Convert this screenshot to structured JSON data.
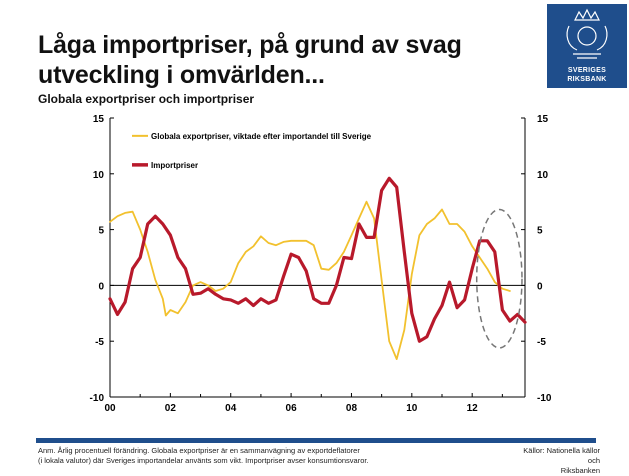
{
  "header": {
    "title_line1": "Låga importpriser, på grund av svag",
    "title_line2": "utveckling i omvärlden...",
    "subtitle": "Globala exportpriser och importpriser"
  },
  "logo": {
    "text1": "SVERIGES",
    "text2": "RIKSBANK",
    "color": "#1f4e8c"
  },
  "footer": {
    "note_line1": "Anm. Årlig procentuell förändring. Globala exportpriser är en sammanvägning av exportdeflatorer",
    "note_line2": "(i lokala valutor) där Sveriges importandelar använts som vikt. Importpriser avser konsumtionsvaror.",
    "source_line1": "Källor: Nationella källor och",
    "source_line2": "Riksbanken"
  },
  "chart_data": {
    "type": "line",
    "ylim": [
      -10,
      15
    ],
    "xlim": [
      2000,
      2013.75
    ],
    "yticks": [
      15,
      10,
      5,
      0,
      -5,
      -10
    ],
    "xticks": [
      {
        "value": 2000,
        "label": "00"
      },
      {
        "value": 2002,
        "label": "02"
      },
      {
        "value": 2004,
        "label": "04"
      },
      {
        "value": 2006,
        "label": "06"
      },
      {
        "value": 2008,
        "label": "08"
      },
      {
        "value": 2010,
        "label": "10"
      },
      {
        "value": 2012,
        "label": "12"
      }
    ],
    "series": [
      {
        "name": "Globala exportpriser, viktade efter importandel till Sverige",
        "color": "#f2c12e",
        "points": [
          [
            2000.0,
            5.7
          ],
          [
            2000.25,
            6.2
          ],
          [
            2000.5,
            6.5
          ],
          [
            2000.75,
            6.6
          ],
          [
            2001.0,
            5.0
          ],
          [
            2001.25,
            3.0
          ],
          [
            2001.5,
            0.5
          ],
          [
            2001.75,
            -1.2
          ],
          [
            2001.85,
            -2.7
          ],
          [
            2002.0,
            -2.2
          ],
          [
            2002.25,
            -2.5
          ],
          [
            2002.5,
            -1.5
          ],
          [
            2002.75,
            0.0
          ],
          [
            2003.0,
            0.3
          ],
          [
            2003.25,
            0.0
          ],
          [
            2003.5,
            -0.5
          ],
          [
            2003.75,
            -0.3
          ],
          [
            2004.0,
            0.3
          ],
          [
            2004.25,
            2.0
          ],
          [
            2004.5,
            3.0
          ],
          [
            2004.75,
            3.5
          ],
          [
            2005.0,
            4.4
          ],
          [
            2005.25,
            3.8
          ],
          [
            2005.5,
            3.6
          ],
          [
            2005.75,
            3.9
          ],
          [
            2006.0,
            4.0
          ],
          [
            2006.25,
            4.0
          ],
          [
            2006.5,
            4.0
          ],
          [
            2006.75,
            3.6
          ],
          [
            2007.0,
            1.5
          ],
          [
            2007.25,
            1.4
          ],
          [
            2007.5,
            2.0
          ],
          [
            2007.75,
            3.0
          ],
          [
            2008.0,
            4.5
          ],
          [
            2008.25,
            6.0
          ],
          [
            2008.5,
            7.5
          ],
          [
            2008.75,
            6.0
          ],
          [
            2009.0,
            0.5
          ],
          [
            2009.25,
            -5.0
          ],
          [
            2009.5,
            -6.6
          ],
          [
            2009.75,
            -4.0
          ],
          [
            2010.0,
            1.0
          ],
          [
            2010.25,
            4.5
          ],
          [
            2010.5,
            5.5
          ],
          [
            2010.75,
            6.0
          ],
          [
            2011.0,
            6.8
          ],
          [
            2011.25,
            5.5
          ],
          [
            2011.5,
            5.5
          ],
          [
            2011.75,
            4.8
          ],
          [
            2012.0,
            3.5
          ],
          [
            2012.25,
            2.5
          ],
          [
            2012.5,
            1.5
          ],
          [
            2012.75,
            0.3
          ],
          [
            2013.0,
            -0.3
          ],
          [
            2013.25,
            -0.5
          ]
        ]
      },
      {
        "name": "Importpriser",
        "color": "#b8192b",
        "points": [
          [
            2000.0,
            -1.2
          ],
          [
            2000.25,
            -2.6
          ],
          [
            2000.5,
            -1.5
          ],
          [
            2000.75,
            1.5
          ],
          [
            2001.0,
            2.5
          ],
          [
            2001.25,
            5.5
          ],
          [
            2001.5,
            6.2
          ],
          [
            2001.75,
            5.5
          ],
          [
            2002.0,
            4.5
          ],
          [
            2002.25,
            2.5
          ],
          [
            2002.5,
            1.5
          ],
          [
            2002.75,
            -0.8
          ],
          [
            2003.0,
            -0.7
          ],
          [
            2003.25,
            -0.3
          ],
          [
            2003.5,
            -0.8
          ],
          [
            2003.75,
            -1.2
          ],
          [
            2004.0,
            -1.3
          ],
          [
            2004.25,
            -1.6
          ],
          [
            2004.5,
            -1.2
          ],
          [
            2004.75,
            -1.8
          ],
          [
            2005.0,
            -1.2
          ],
          [
            2005.25,
            -1.6
          ],
          [
            2005.5,
            -1.3
          ],
          [
            2005.75,
            0.8
          ],
          [
            2006.0,
            2.8
          ],
          [
            2006.25,
            2.5
          ],
          [
            2006.5,
            1.3
          ],
          [
            2006.75,
            -1.2
          ],
          [
            2007.0,
            -1.6
          ],
          [
            2007.25,
            -1.6
          ],
          [
            2007.5,
            0.0
          ],
          [
            2007.75,
            2.5
          ],
          [
            2008.0,
            2.4
          ],
          [
            2008.25,
            5.5
          ],
          [
            2008.5,
            4.3
          ],
          [
            2008.75,
            4.3
          ],
          [
            2009.0,
            8.5
          ],
          [
            2009.25,
            9.6
          ],
          [
            2009.5,
            8.8
          ],
          [
            2009.75,
            3.0
          ],
          [
            2010.0,
            -2.5
          ],
          [
            2010.25,
            -5.0
          ],
          [
            2010.5,
            -4.6
          ],
          [
            2010.75,
            -3.0
          ],
          [
            2011.0,
            -1.8
          ],
          [
            2011.25,
            0.3
          ],
          [
            2011.5,
            -2.0
          ],
          [
            2011.75,
            -1.3
          ],
          [
            2012.0,
            1.5
          ],
          [
            2012.25,
            4.0
          ],
          [
            2012.5,
            4.0
          ],
          [
            2012.75,
            3.0
          ],
          [
            2013.0,
            -2.2
          ],
          [
            2013.25,
            -3.2
          ],
          [
            2013.5,
            -2.6
          ],
          [
            2013.75,
            -3.3
          ]
        ]
      }
    ],
    "ellipse": {
      "cx": 2012.9,
      "cy": 0.6,
      "rx": 0.75,
      "ry": 6.2
    }
  }
}
